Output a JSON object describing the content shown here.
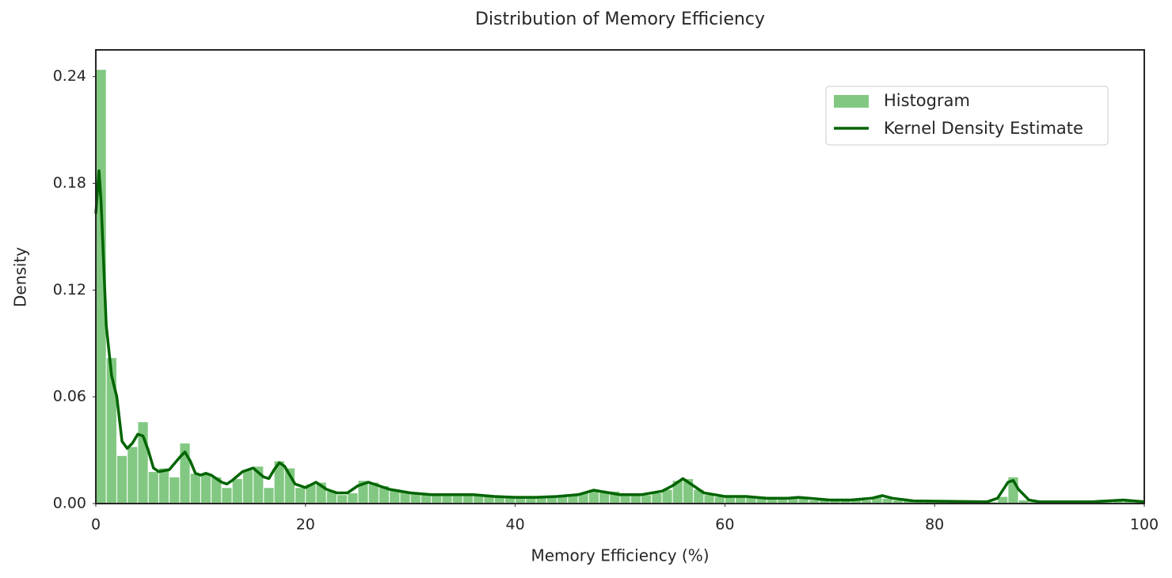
{
  "chart_data": {
    "type": "histogram",
    "title": "Distribution of Memory Efficiency",
    "xlabel": "Memory Efficiency (%)",
    "ylabel": "Density",
    "bins": [
      0,
      1,
      2,
      3,
      4,
      5,
      6,
      7,
      8,
      9,
      10,
      11,
      12,
      13,
      14,
      15,
      16,
      17,
      18,
      19,
      20,
      21,
      22,
      23,
      24,
      25,
      26,
      27,
      28,
      29,
      30,
      31,
      32,
      33,
      34,
      35,
      36,
      37,
      38,
      39,
      40,
      41,
      42,
      43,
      44,
      45,
      46,
      47,
      48,
      49,
      50,
      51,
      52,
      53,
      54,
      55,
      56,
      57,
      58,
      59,
      60,
      61,
      62,
      63,
      64,
      65,
      66,
      67,
      68,
      69,
      70,
      71,
      72,
      73,
      74,
      75,
      76,
      77,
      78,
      79,
      80,
      81,
      82,
      83,
      84,
      85,
      86,
      87,
      88,
      89,
      90,
      91,
      92,
      93,
      94,
      95,
      96,
      97,
      98,
      99,
      100
    ],
    "series": [
      {
        "name": "Histogram",
        "color": "#82c882",
        "values": [
          0.244,
          0.082,
          0.027,
          0.032,
          0.046,
          0.018,
          0.02,
          0.015,
          0.034,
          0.017,
          0.017,
          0.015,
          0.009,
          0.014,
          0.019,
          0.021,
          0.009,
          0.024,
          0.02,
          0.009,
          0.011,
          0.012,
          0.007,
          0.005,
          0.006,
          0.013,
          0.012,
          0.01,
          0.008,
          0.007,
          0.006,
          0.005,
          0.005,
          0.005,
          0.005,
          0.005,
          0.005,
          0.005,
          0.004,
          0.004,
          0.004,
          0.004,
          0.004,
          0.004,
          0.005,
          0.005,
          0.006,
          0.008,
          0.007,
          0.007,
          0.005,
          0.005,
          0.005,
          0.006,
          0.008,
          0.013,
          0.014,
          0.008,
          0.005,
          0.004,
          0.004,
          0.004,
          0.004,
          0.003,
          0.003,
          0.003,
          0.004,
          0.003,
          0.002,
          0.002,
          0.002,
          0.002,
          0.002,
          0.002,
          0.004,
          0.003,
          0.002,
          0.002,
          0.002,
          0.001,
          0.001,
          0.001,
          0.001,
          0.001,
          0.001,
          0.001,
          0.004,
          0.015,
          0.002,
          0.001,
          0.001,
          0.001,
          0.001,
          0.001,
          0.001,
          0.001,
          0.001,
          0.002,
          0.002,
          0.002
        ]
      },
      {
        "name": "Kernel Density Estimate",
        "color": "#006400",
        "x": [
          0,
          0.3,
          0.5,
          1,
          1.5,
          2,
          2.5,
          3,
          3.5,
          4,
          4.5,
          5,
          5.5,
          6,
          7,
          8,
          8.5,
          9,
          9.5,
          10,
          10.5,
          11,
          12,
          12.5,
          13,
          14,
          15,
          16,
          16.5,
          17,
          17.5,
          18,
          19,
          20,
          21,
          22,
          23,
          24,
          25,
          26,
          27,
          28,
          30,
          32,
          34,
          36,
          38,
          40,
          42,
          44,
          46,
          47.5,
          49,
          50,
          52,
          54,
          55,
          56,
          57,
          58,
          60,
          62,
          64,
          66,
          67,
          70,
          72,
          74,
          75,
          76,
          78,
          82,
          85,
          86,
          87,
          87.5,
          88,
          89,
          90,
          95,
          98,
          100
        ],
        "values": [
          0.163,
          0.187,
          0.17,
          0.1,
          0.072,
          0.06,
          0.035,
          0.031,
          0.034,
          0.039,
          0.038,
          0.03,
          0.02,
          0.018,
          0.019,
          0.026,
          0.029,
          0.024,
          0.017,
          0.016,
          0.017,
          0.016,
          0.012,
          0.011,
          0.013,
          0.018,
          0.02,
          0.015,
          0.014,
          0.019,
          0.023,
          0.021,
          0.011,
          0.009,
          0.012,
          0.008,
          0.006,
          0.006,
          0.01,
          0.012,
          0.01,
          0.008,
          0.006,
          0.005,
          0.005,
          0.005,
          0.004,
          0.0035,
          0.0035,
          0.004,
          0.005,
          0.0075,
          0.006,
          0.005,
          0.005,
          0.007,
          0.01,
          0.014,
          0.01,
          0.006,
          0.004,
          0.004,
          0.003,
          0.003,
          0.0035,
          0.002,
          0.002,
          0.003,
          0.0045,
          0.003,
          0.0015,
          0.0012,
          0.001,
          0.003,
          0.012,
          0.013,
          0.008,
          0.002,
          0.001,
          0.001,
          0.002,
          0.001
        ]
      }
    ],
    "xlim": [
      0,
      100
    ],
    "ylim": [
      0,
      0.255
    ],
    "xticks": [
      0,
      20,
      40,
      60,
      80,
      100
    ],
    "yticks": [
      {
        "value": 0,
        "label": "0.00"
      },
      0.06,
      0.12,
      0.18,
      0.24
    ],
    "legend": "upper right"
  }
}
